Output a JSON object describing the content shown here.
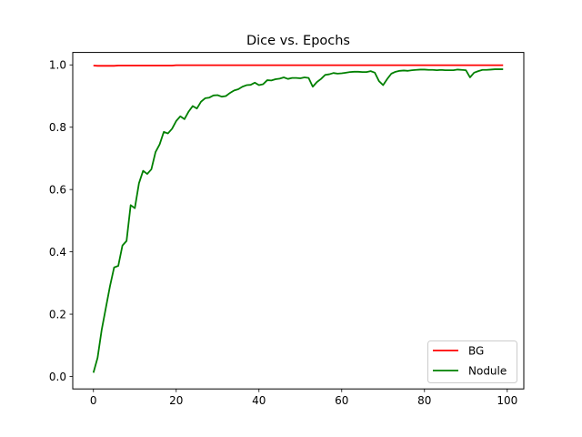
{
  "chart_data": {
    "type": "line",
    "title": "Dice vs. Epochs",
    "xlabel": "",
    "ylabel": "",
    "xlim": [
      -5,
      104
    ],
    "ylim": [
      -0.04,
      1.04
    ],
    "xticks": [
      0,
      20,
      40,
      60,
      80,
      100
    ],
    "yticks": [
      0.0,
      0.2,
      0.4,
      0.6,
      0.8,
      1.0
    ],
    "xtick_labels": [
      "0",
      "20",
      "40",
      "60",
      "80",
      "100"
    ],
    "ytick_labels": [
      "0.0",
      "0.2",
      "0.4",
      "0.6",
      "0.8",
      "1.0"
    ],
    "grid": false,
    "legend_position": "lower-right",
    "series": [
      {
        "name": "BG",
        "color": "#ff0000",
        "x": [
          0,
          1,
          2,
          3,
          4,
          5,
          6,
          7,
          8,
          9,
          10,
          11,
          12,
          13,
          14,
          15,
          16,
          17,
          18,
          19,
          20,
          21,
          22,
          23,
          24,
          25,
          26,
          27,
          28,
          29,
          30,
          31,
          32,
          33,
          34,
          35,
          36,
          37,
          38,
          39,
          40,
          41,
          42,
          43,
          44,
          45,
          46,
          47,
          48,
          49,
          50,
          51,
          52,
          53,
          54,
          55,
          56,
          57,
          58,
          59,
          60,
          61,
          62,
          63,
          64,
          65,
          66,
          67,
          68,
          69,
          70,
          71,
          72,
          73,
          74,
          75,
          76,
          77,
          78,
          79,
          80,
          81,
          82,
          83,
          84,
          85,
          86,
          87,
          88,
          89,
          90,
          91,
          92,
          93,
          94,
          95,
          96,
          97,
          98,
          99
        ],
        "values": [
          0.998,
          0.997,
          0.997,
          0.997,
          0.997,
          0.997,
          0.998,
          0.998,
          0.998,
          0.998,
          0.998,
          0.998,
          0.998,
          0.998,
          0.998,
          0.998,
          0.998,
          0.998,
          0.998,
          0.998,
          0.999,
          0.999,
          0.999,
          0.999,
          0.999,
          0.999,
          0.999,
          0.999,
          0.999,
          0.999,
          0.999,
          0.999,
          0.999,
          0.999,
          0.999,
          0.999,
          0.999,
          0.999,
          0.999,
          0.999,
          0.999,
          0.999,
          0.999,
          0.999,
          0.999,
          0.999,
          0.999,
          0.999,
          0.999,
          0.999,
          0.999,
          0.999,
          0.999,
          0.999,
          0.999,
          0.999,
          0.999,
          0.999,
          0.999,
          0.999,
          0.999,
          0.999,
          0.999,
          0.999,
          0.999,
          0.999,
          0.999,
          0.999,
          0.999,
          0.999,
          0.999,
          0.999,
          0.999,
          0.999,
          0.999,
          0.999,
          0.999,
          0.999,
          0.999,
          0.999,
          0.999,
          0.999,
          0.999,
          0.999,
          0.999,
          0.999,
          0.999,
          0.999,
          0.999,
          0.999,
          0.999,
          0.999,
          0.999,
          0.999,
          0.999,
          0.999,
          0.999,
          0.999,
          0.999,
          0.999
        ]
      },
      {
        "name": "Nodule",
        "color": "#008000",
        "x": [
          0,
          1,
          2,
          3,
          4,
          5,
          6,
          7,
          8,
          9,
          10,
          11,
          12,
          13,
          14,
          15,
          16,
          17,
          18,
          19,
          20,
          21,
          22,
          23,
          24,
          25,
          26,
          27,
          28,
          29,
          30,
          31,
          32,
          33,
          34,
          35,
          36,
          37,
          38,
          39,
          40,
          41,
          42,
          43,
          44,
          45,
          46,
          47,
          48,
          49,
          50,
          51,
          52,
          53,
          54,
          55,
          56,
          57,
          58,
          59,
          60,
          61,
          62,
          63,
          64,
          65,
          66,
          67,
          68,
          69,
          70,
          71,
          72,
          73,
          74,
          75,
          76,
          77,
          78,
          79,
          80,
          81,
          82,
          83,
          84,
          85,
          86,
          87,
          88,
          89,
          90,
          91,
          92,
          93,
          94,
          95,
          96,
          97,
          98,
          99
        ],
        "values": [
          0.012,
          0.06,
          0.15,
          0.22,
          0.29,
          0.35,
          0.355,
          0.42,
          0.435,
          0.55,
          0.54,
          0.62,
          0.66,
          0.65,
          0.665,
          0.72,
          0.745,
          0.785,
          0.78,
          0.795,
          0.82,
          0.835,
          0.826,
          0.85,
          0.868,
          0.86,
          0.882,
          0.893,
          0.895,
          0.902,
          0.903,
          0.898,
          0.9,
          0.91,
          0.918,
          0.922,
          0.93,
          0.935,
          0.936,
          0.943,
          0.935,
          0.938,
          0.951,
          0.95,
          0.954,
          0.956,
          0.96,
          0.955,
          0.958,
          0.958,
          0.957,
          0.96,
          0.958,
          0.93,
          0.945,
          0.955,
          0.968,
          0.97,
          0.974,
          0.972,
          0.973,
          0.975,
          0.977,
          0.978,
          0.978,
          0.977,
          0.977,
          0.98,
          0.975,
          0.948,
          0.935,
          0.955,
          0.972,
          0.978,
          0.981,
          0.982,
          0.981,
          0.983,
          0.984,
          0.985,
          0.985,
          0.984,
          0.984,
          0.983,
          0.984,
          0.983,
          0.983,
          0.983,
          0.985,
          0.984,
          0.983,
          0.96,
          0.975,
          0.98,
          0.984,
          0.984,
          0.985,
          0.986,
          0.986,
          0.986
        ]
      }
    ]
  }
}
